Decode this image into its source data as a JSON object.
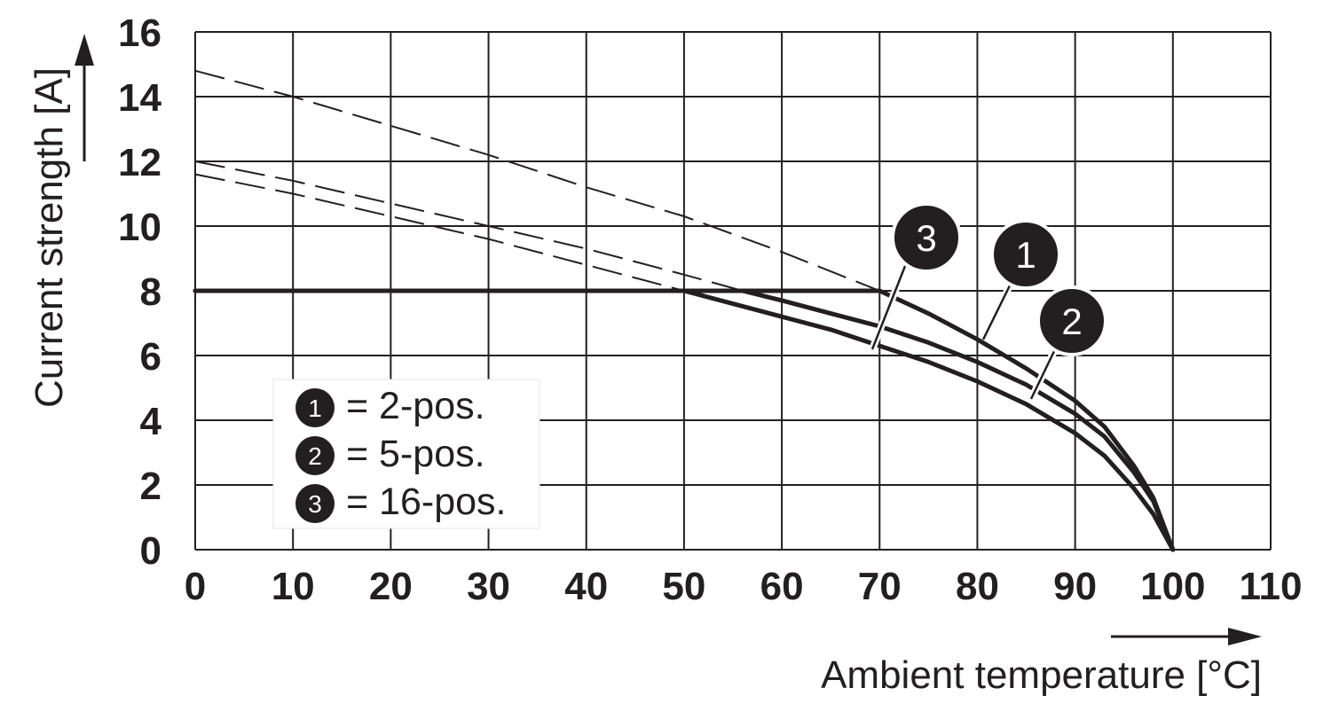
{
  "chart_data": {
    "type": "line",
    "xlabel": "Ambient temperature [°C]",
    "ylabel": "Current strength [A]",
    "xlim": [
      0,
      110
    ],
    "ylim": [
      0,
      16
    ],
    "x_ticks": [
      "0",
      "10",
      "20",
      "30",
      "40",
      "50",
      "60",
      "70",
      "80",
      "90",
      "100",
      "110"
    ],
    "y_ticks": [
      "0",
      "2",
      "4",
      "6",
      "8",
      "10",
      "12",
      "14",
      "16"
    ],
    "grid": true,
    "legend_position": "bottom-left",
    "series": [
      {
        "marker": "1",
        "name": "2-pos.",
        "legend_label": "= 2-pos.",
        "solid": [
          [
            0,
            8
          ],
          [
            70,
            8
          ],
          [
            75,
            7.3
          ],
          [
            80,
            6.5
          ],
          [
            85,
            5.6
          ],
          [
            90,
            4.6
          ],
          [
            93,
            3.8
          ],
          [
            96,
            2.6
          ],
          [
            98,
            1.6
          ],
          [
            100,
            0
          ]
        ],
        "dashed": [
          [
            0,
            14.8
          ],
          [
            10,
            14.0
          ],
          [
            20,
            13.1
          ],
          [
            30,
            12.2
          ],
          [
            40,
            11.2
          ],
          [
            50,
            10.3
          ],
          [
            60,
            9.2
          ],
          [
            70,
            8
          ]
        ]
      },
      {
        "marker": "2",
        "name": "5-pos.",
        "legend_label": "= 5-pos.",
        "solid": [
          [
            0,
            8
          ],
          [
            56,
            8
          ],
          [
            60,
            7.7
          ],
          [
            65,
            7.3
          ],
          [
            70,
            6.9
          ],
          [
            75,
            6.4
          ],
          [
            80,
            5.8
          ],
          [
            85,
            5.1
          ],
          [
            90,
            4.2
          ],
          [
            93,
            3.5
          ],
          [
            96,
            2.4
          ],
          [
            98,
            1.5
          ],
          [
            100,
            0
          ]
        ],
        "dashed": [
          [
            0,
            12.0
          ],
          [
            10,
            11.4
          ],
          [
            20,
            10.7
          ],
          [
            30,
            10.0
          ],
          [
            40,
            9.3
          ],
          [
            50,
            8.5
          ],
          [
            56,
            8
          ]
        ]
      },
      {
        "marker": "3",
        "name": "16-pos.",
        "legend_label": "= 16-pos.",
        "solid": [
          [
            0,
            8
          ],
          [
            50,
            8
          ],
          [
            55,
            7.6
          ],
          [
            60,
            7.2
          ],
          [
            65,
            6.8
          ],
          [
            70,
            6.3
          ],
          [
            75,
            5.8
          ],
          [
            80,
            5.2
          ],
          [
            85,
            4.5
          ],
          [
            90,
            3.6
          ],
          [
            93,
            2.9
          ],
          [
            96,
            1.9
          ],
          [
            98,
            1.1
          ],
          [
            100,
            0
          ]
        ],
        "dashed": [
          [
            0,
            11.6
          ],
          [
            10,
            11.0
          ],
          [
            20,
            10.3
          ],
          [
            30,
            9.6
          ],
          [
            40,
            8.8
          ],
          [
            50,
            8
          ]
        ]
      }
    ]
  }
}
